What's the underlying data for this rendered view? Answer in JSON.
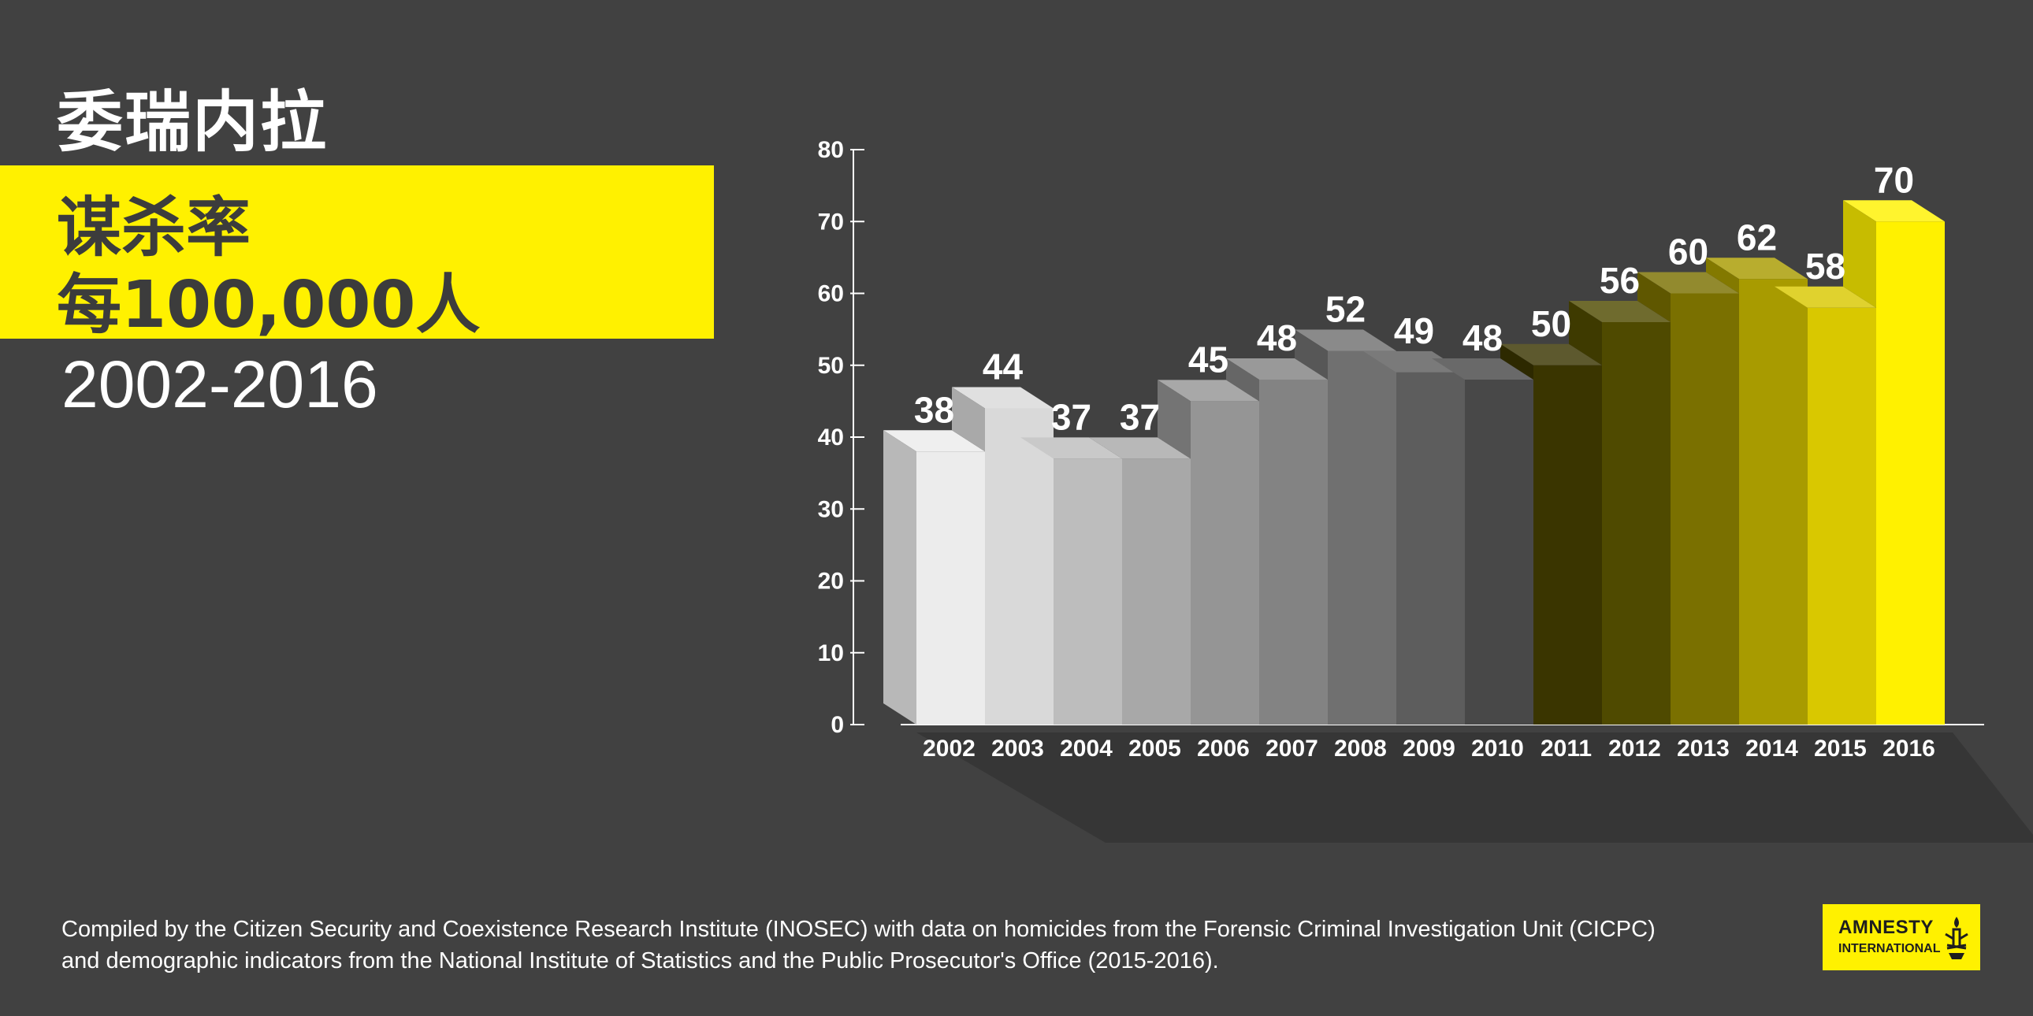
{
  "header": {
    "country": "委瑞内拉",
    "title_line1": "谋杀率",
    "title_line2": "每100,000人",
    "years": "2002-2016"
  },
  "chart_data": {
    "type": "bar",
    "title": "谋杀率 每100,000人 2002-2016",
    "xlabel": "",
    "ylabel": "",
    "ylim": [
      0,
      80
    ],
    "yticks": [
      0,
      10,
      20,
      30,
      40,
      50,
      60,
      70,
      80
    ],
    "categories": [
      "2002",
      "2003",
      "2004",
      "2005",
      "2006",
      "2007",
      "2008",
      "2009",
      "2010",
      "2011",
      "2012",
      "2013",
      "2014",
      "2015",
      "2016"
    ],
    "values": [
      38,
      44,
      37,
      37,
      45,
      48,
      52,
      49,
      48,
      50,
      56,
      60,
      62,
      58,
      70
    ],
    "colors": [
      "#ececec",
      "#d9d9d9",
      "#bdbdbd",
      "#a8a8a8",
      "#959595",
      "#838383",
      "#707070",
      "#5d5d5d",
      "#484848",
      "#3a3500",
      "#4f4a00",
      "#7a7000",
      "#a89b00",
      "#d9c800",
      "#fff100"
    ]
  },
  "footer": {
    "source_line1": "Compiled by the Citizen Security and Coexistence Research Institute (INOSEC) with data on homicides from the Forensic Criminal Investigation Unit (CICPC)",
    "source_line2": "and demographic indicators from the National Institute of Statistics and the Public Prosecutor's Office (2015-2016)."
  },
  "logo": {
    "line1": "AMNESTY",
    "line2": "INTERNATIONAL"
  }
}
